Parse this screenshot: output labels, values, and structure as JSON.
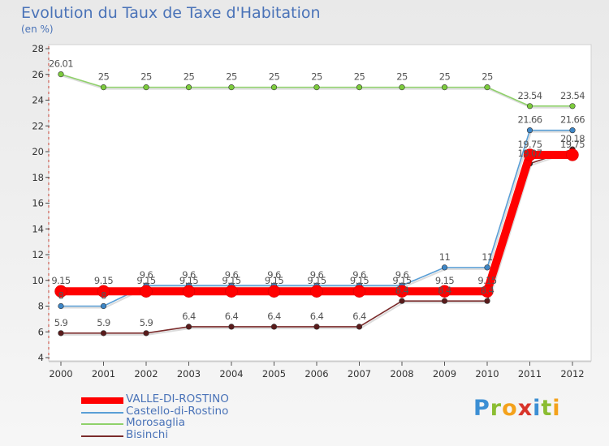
{
  "header": {
    "title": "Evolution du Taux de Taxe d'Habitation",
    "unit": "(en %)"
  },
  "logo": {
    "letters": [
      "P",
      "r",
      "o",
      "x",
      "i",
      "t",
      "i"
    ],
    "colors": [
      "#3c8fd4",
      "#8bbd32",
      "#f4a21c",
      "#d8342a",
      "#3c8fd4",
      "#8bbd32",
      "#f4a21c"
    ]
  },
  "chart_data": {
    "type": "line",
    "title": "Evolution du Taux de Taxe d'Habitation",
    "ylabel": "(en %)",
    "xlabel": "",
    "x": [
      "2000",
      "2001",
      "2002",
      "2003",
      "2004",
      "2005",
      "2006",
      "2007",
      "2008",
      "2009",
      "2010",
      "2011",
      "2012"
    ],
    "ylim": [
      4,
      28
    ],
    "yticks": [
      "4",
      "6",
      "8",
      "10",
      "12",
      "14",
      "16",
      "18",
      "20",
      "22",
      "24",
      "26",
      "28"
    ],
    "grid": false,
    "legend_position": "bottom-left",
    "series": [
      {
        "name": "Morosaglia",
        "color": "#8fd16a",
        "marker": "#7ccb3c",
        "values": [
          26.01,
          25,
          25,
          25,
          25,
          25,
          25,
          25,
          25,
          25,
          25,
          23.54,
          23.54
        ],
        "labels": [
          "26.01",
          "25",
          "25",
          "25",
          "25",
          "25",
          "25",
          "25",
          "25",
          "25",
          "25",
          "23.54",
          "23.54"
        ]
      },
      {
        "name": "Castello-di-Rostino",
        "color": "#5a9fd6",
        "marker": "#3e86c6",
        "values": [
          8,
          8,
          9.6,
          9.6,
          9.6,
          9.6,
          9.6,
          9.6,
          9.6,
          11,
          11,
          21.66,
          21.66
        ],
        "labels": [
          "8",
          "8",
          "9.6",
          "9.6",
          "9.6",
          "9.6",
          "9.6",
          "9.6",
          "9.6",
          "11",
          "11",
          "21.66",
          "21.66"
        ]
      },
      {
        "name": "Bisinchi",
        "color": "#7a2b2b",
        "marker": "#5a1b1b",
        "values": [
          5.9,
          5.9,
          5.9,
          6.4,
          6.4,
          6.4,
          6.4,
          6.4,
          8.4,
          8.4,
          8.4,
          19.07,
          20.18
        ],
        "labels": [
          "5.9",
          "5.9",
          "5.9",
          "6.4",
          "6.4",
          "6.4",
          "6.4",
          "6.4",
          "8.4",
          "8.4",
          "8.4",
          "19.07",
          "20.18"
        ]
      },
      {
        "name": "VALLE-DI-ROSTINO",
        "color": "#ff0000",
        "marker": "#ff0000",
        "values": [
          9.15,
          9.15,
          9.15,
          9.15,
          9.15,
          9.15,
          9.15,
          9.15,
          9.15,
          9.15,
          9.15,
          19.75,
          19.75
        ],
        "labels": [
          "9.15",
          "9.15",
          "9.15",
          "9.15",
          "9.15",
          "9.15",
          "9.15",
          "9.15",
          "9.15",
          "9.15",
          "9.15",
          "19.75",
          "19.75"
        ]
      }
    ],
    "legend": [
      "VALLE-DI-ROSTINO",
      "Castello-di-Rostino",
      "Morosaglia",
      "Bisinchi"
    ]
  }
}
